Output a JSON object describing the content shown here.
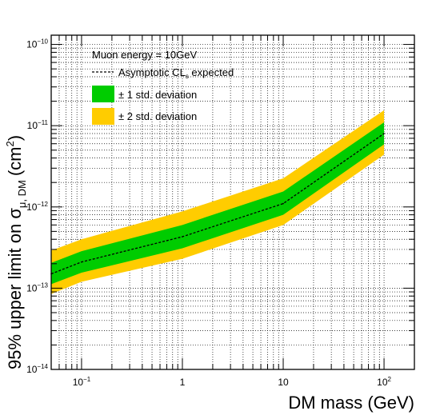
{
  "chart_data": {
    "type": "line",
    "title": "",
    "xlabel": "DM mass (GeV)",
    "ylabel_main": "95% upper limit on σ",
    "ylabel_sub": "μ, DM",
    "ylabel_unit": "(cm",
    "ylabel_unit_sup": "2",
    "ylabel_unit_close": ")",
    "xscale": "log",
    "yscale": "log",
    "xlim": [
      0.05,
      200
    ],
    "ylim": [
      1e-14,
      1.3e-10
    ],
    "grid": true,
    "legend_position": "top-left",
    "x_ticks": [
      {
        "value": 0.1,
        "base": "10",
        "exp": "−1"
      },
      {
        "value": 1,
        "base": "1",
        "exp": ""
      },
      {
        "value": 10,
        "base": "10",
        "exp": ""
      },
      {
        "value": 100,
        "base": "10",
        "exp": "2"
      }
    ],
    "y_ticks": [
      {
        "value": 1e-14,
        "base": "10",
        "exp": "−14"
      },
      {
        "value": 1e-13,
        "base": "10",
        "exp": "−13"
      },
      {
        "value": 1e-12,
        "base": "10",
        "exp": "−12"
      },
      {
        "value": 1e-11,
        "base": "10",
        "exp": "−11"
      },
      {
        "value": 1e-10,
        "base": "10",
        "exp": "−10"
      }
    ],
    "annotation": "Muon energy = 10GeV",
    "legend": {
      "expected_label": "Asymptotic CL",
      "expected_label_sub": "s",
      "expected_label_tail": " expected",
      "band1_label": "± 1 std. deviation",
      "band2_label": "± 2 std. deviation"
    },
    "colors": {
      "band1": "#00cc00",
      "band2": "#ffcc00",
      "expected_line": "#000000"
    },
    "series": [
      {
        "kind": "expected",
        "x": [
          0.05,
          0.1,
          1,
          10,
          100
        ],
        "y": [
          1.5e-13,
          2.1e-13,
          4.3e-13,
          1.1e-12,
          8e-12
        ]
      },
      {
        "kind": "band2",
        "x": [
          0.05,
          0.1,
          1,
          10,
          100
        ],
        "lower": [
          8.5e-14,
          1.2e-13,
          2.3e-13,
          6e-13,
          4.4e-12
        ],
        "upper": [
          2.9e-13,
          4e-13,
          8.8e-13,
          2.25e-12,
          1.55e-11
        ]
      },
      {
        "kind": "band1",
        "x": [
          0.05,
          0.1,
          1,
          10,
          100
        ],
        "lower": [
          1.12e-13,
          1.55e-13,
          3.1e-13,
          8e-13,
          5.9e-12
        ],
        "upper": [
          2.05e-13,
          2.85e-13,
          6e-13,
          1.55e-12,
          1.1e-11
        ]
      }
    ]
  }
}
